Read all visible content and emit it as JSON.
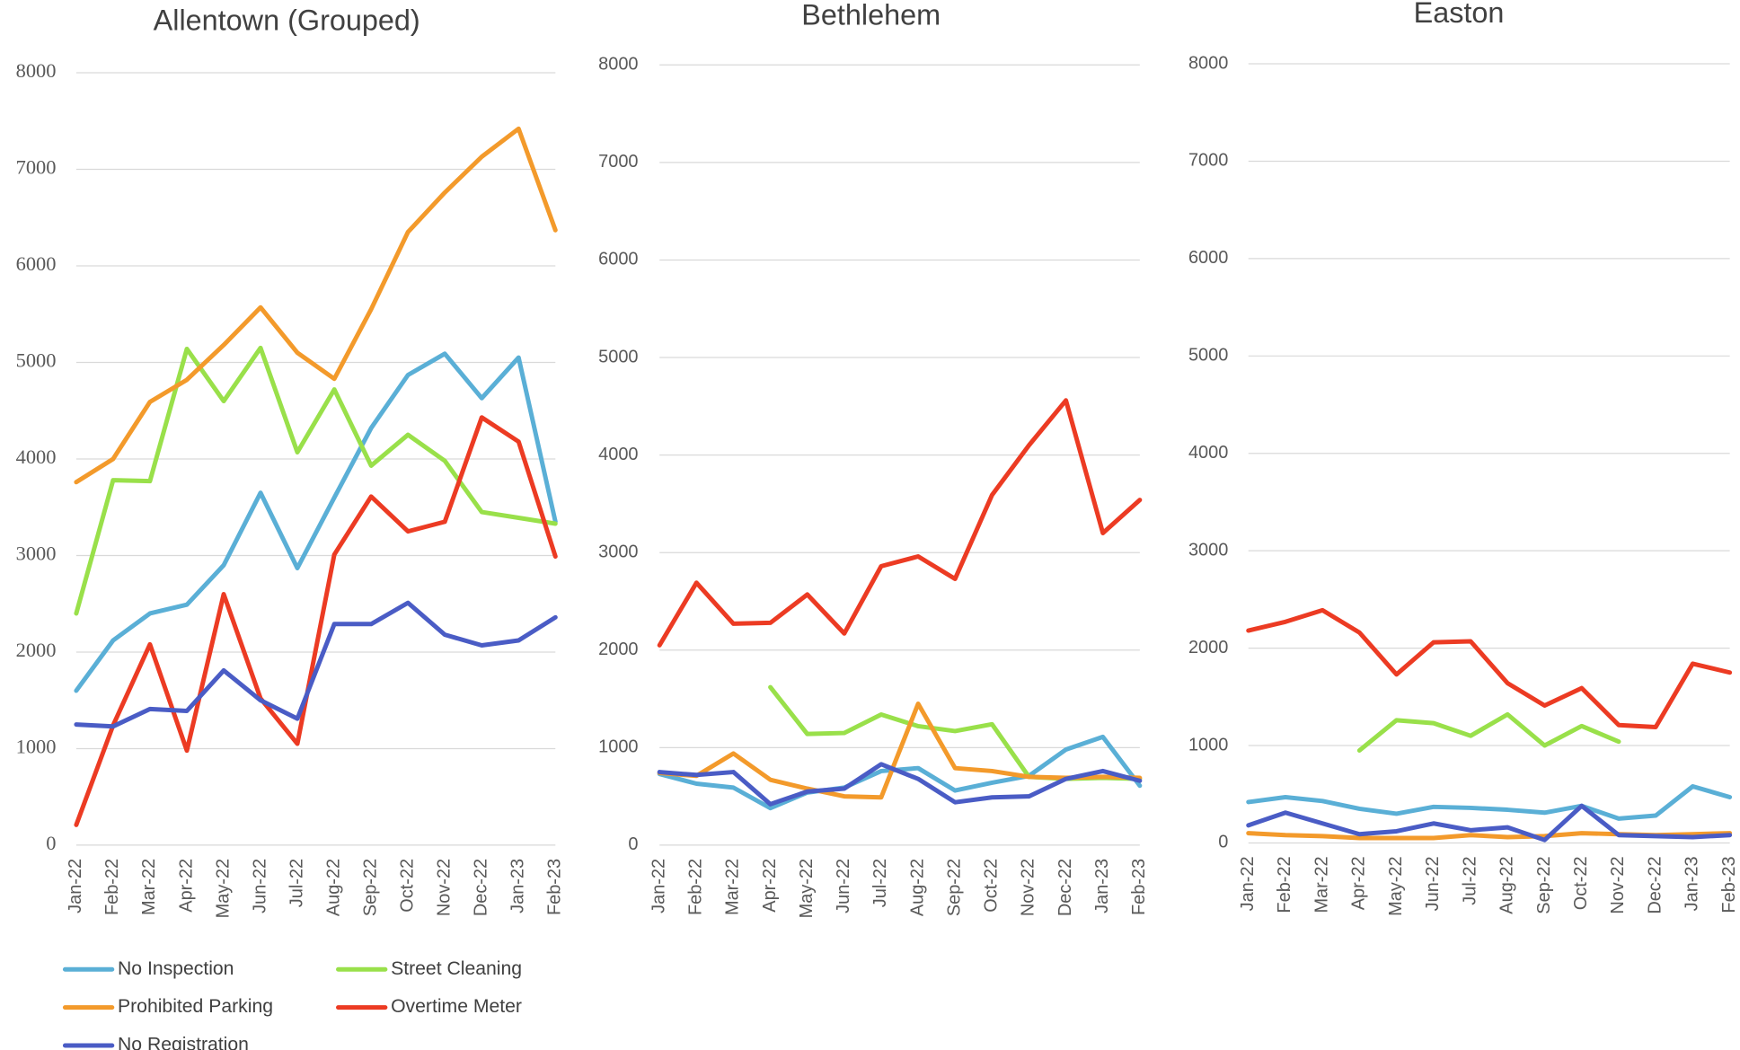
{
  "chart_data": [
    {
      "type": "line",
      "title": "Allentown (Grouped)",
      "categories": [
        "Jan-22",
        "Feb-22",
        "Mar-22",
        "Apr-22",
        "May-22",
        "Jun-22",
        "Jul-22",
        "Aug-22",
        "Sep-22",
        "Oct-22",
        "Nov-22",
        "Dec-22",
        "Jan-23",
        "Feb-23"
      ],
      "ylim": [
        0,
        8000
      ],
      "yticks": [
        0,
        1000,
        2000,
        3000,
        4000,
        5000,
        6000,
        7000,
        8000
      ],
      "grid": true,
      "legend": "bottom",
      "series": [
        {
          "name": "No Inspection",
          "color": "#5aafd6",
          "values": [
            1600,
            2120,
            2400,
            2490,
            2900,
            3650,
            2870,
            3600,
            4320,
            4870,
            5090,
            4630,
            5050,
            3350
          ]
        },
        {
          "name": "Street Cleaning",
          "color": "#99e04a",
          "values": [
            2400,
            3780,
            3770,
            5140,
            4600,
            5150,
            4070,
            4720,
            3930,
            4250,
            3980,
            3450,
            3390,
            3330
          ]
        },
        {
          "name": "Prohibited Parking",
          "color": "#f39a2b",
          "values": [
            3760,
            4000,
            4590,
            4820,
            5180,
            5570,
            5100,
            4830,
            5550,
            6350,
            6760,
            7130,
            7420,
            6370
          ]
        },
        {
          "name": "Overtime Meter",
          "color": "#ec3b23",
          "values": [
            210,
            1240,
            2080,
            980,
            2600,
            1520,
            1050,
            3010,
            3610,
            3250,
            3350,
            4430,
            4180,
            2990
          ]
        },
        {
          "name": "No Registration",
          "color": "#4a5cc5",
          "values": [
            1250,
            1230,
            1410,
            1390,
            1810,
            1500,
            1310,
            2290,
            2290,
            2510,
            2180,
            2070,
            2120,
            2360
          ]
        }
      ]
    },
    {
      "type": "line",
      "title": "Bethlehem",
      "categories": [
        "Jan-22",
        "Feb-22",
        "Mar-22",
        "Apr-22",
        "May-22",
        "Jun-22",
        "Jul-22",
        "Aug-22",
        "Sep-22",
        "Oct-22",
        "Nov-22",
        "Dec-22",
        "Jan-23",
        "Feb-23"
      ],
      "ylim": [
        0,
        8000
      ],
      "yticks": [
        0,
        1000,
        2000,
        3000,
        4000,
        5000,
        6000,
        7000,
        8000
      ],
      "grid": true,
      "series": [
        {
          "color": "#5aafd6",
          "values": [
            730,
            630,
            590,
            380,
            540,
            590,
            760,
            790,
            560,
            640,
            710,
            980,
            1110,
            610
          ]
        },
        {
          "color": "#99e04a",
          "values": [
            null,
            null,
            null,
            1620,
            1140,
            1150,
            1340,
            1220,
            1170,
            1240,
            700,
            680,
            690,
            680
          ]
        },
        {
          "color": "#f39a2b",
          "values": [
            740,
            710,
            940,
            670,
            580,
            500,
            490,
            1450,
            790,
            760,
            700,
            690,
            700,
            690
          ]
        },
        {
          "color": "#ec3b23",
          "values": [
            2050,
            2690,
            2270,
            2280,
            2570,
            2170,
            2860,
            2960,
            2730,
            3590,
            4100,
            4560,
            3200,
            3540
          ]
        },
        {
          "color": "#4a5cc5",
          "values": [
            750,
            720,
            750,
            420,
            550,
            580,
            830,
            680,
            440,
            490,
            500,
            680,
            760,
            660
          ]
        }
      ]
    },
    {
      "type": "line",
      "title": "Easton",
      "categories": [
        "Jan-22",
        "Feb-22",
        "Mar-22",
        "Apr-22",
        "May-22",
        "Jun-22",
        "Jul-22",
        "Aug-22",
        "Sep-22",
        "Oct-22",
        "Nov-22",
        "Dec-22",
        "Jan-23",
        "Feb-23"
      ],
      "ylim": [
        0,
        8000
      ],
      "yticks": [
        0,
        1000,
        2000,
        3000,
        4000,
        5000,
        6000,
        7000,
        8000
      ],
      "grid": true,
      "series": [
        {
          "color": "#5aafd6",
          "values": [
            420,
            470,
            430,
            350,
            300,
            370,
            360,
            340,
            310,
            380,
            250,
            280,
            580,
            470
          ]
        },
        {
          "color": "#99e04a",
          "values": [
            null,
            null,
            null,
            950,
            1260,
            1230,
            1100,
            1320,
            1000,
            1200,
            1040,
            null,
            null,
            null
          ]
        },
        {
          "color": "#f39a2b",
          "values": [
            100,
            80,
            70,
            50,
            50,
            50,
            80,
            60,
            70,
            100,
            90,
            80,
            90,
            100
          ]
        },
        {
          "color": "#ec3b23",
          "values": [
            2180,
            2270,
            2390,
            2160,
            1730,
            2060,
            2070,
            1640,
            1410,
            1590,
            1210,
            1190,
            1840,
            1750
          ]
        },
        {
          "color": "#4a5cc5",
          "values": [
            180,
            310,
            200,
            90,
            120,
            200,
            130,
            160,
            30,
            380,
            80,
            70,
            60,
            80
          ]
        }
      ]
    }
  ]
}
